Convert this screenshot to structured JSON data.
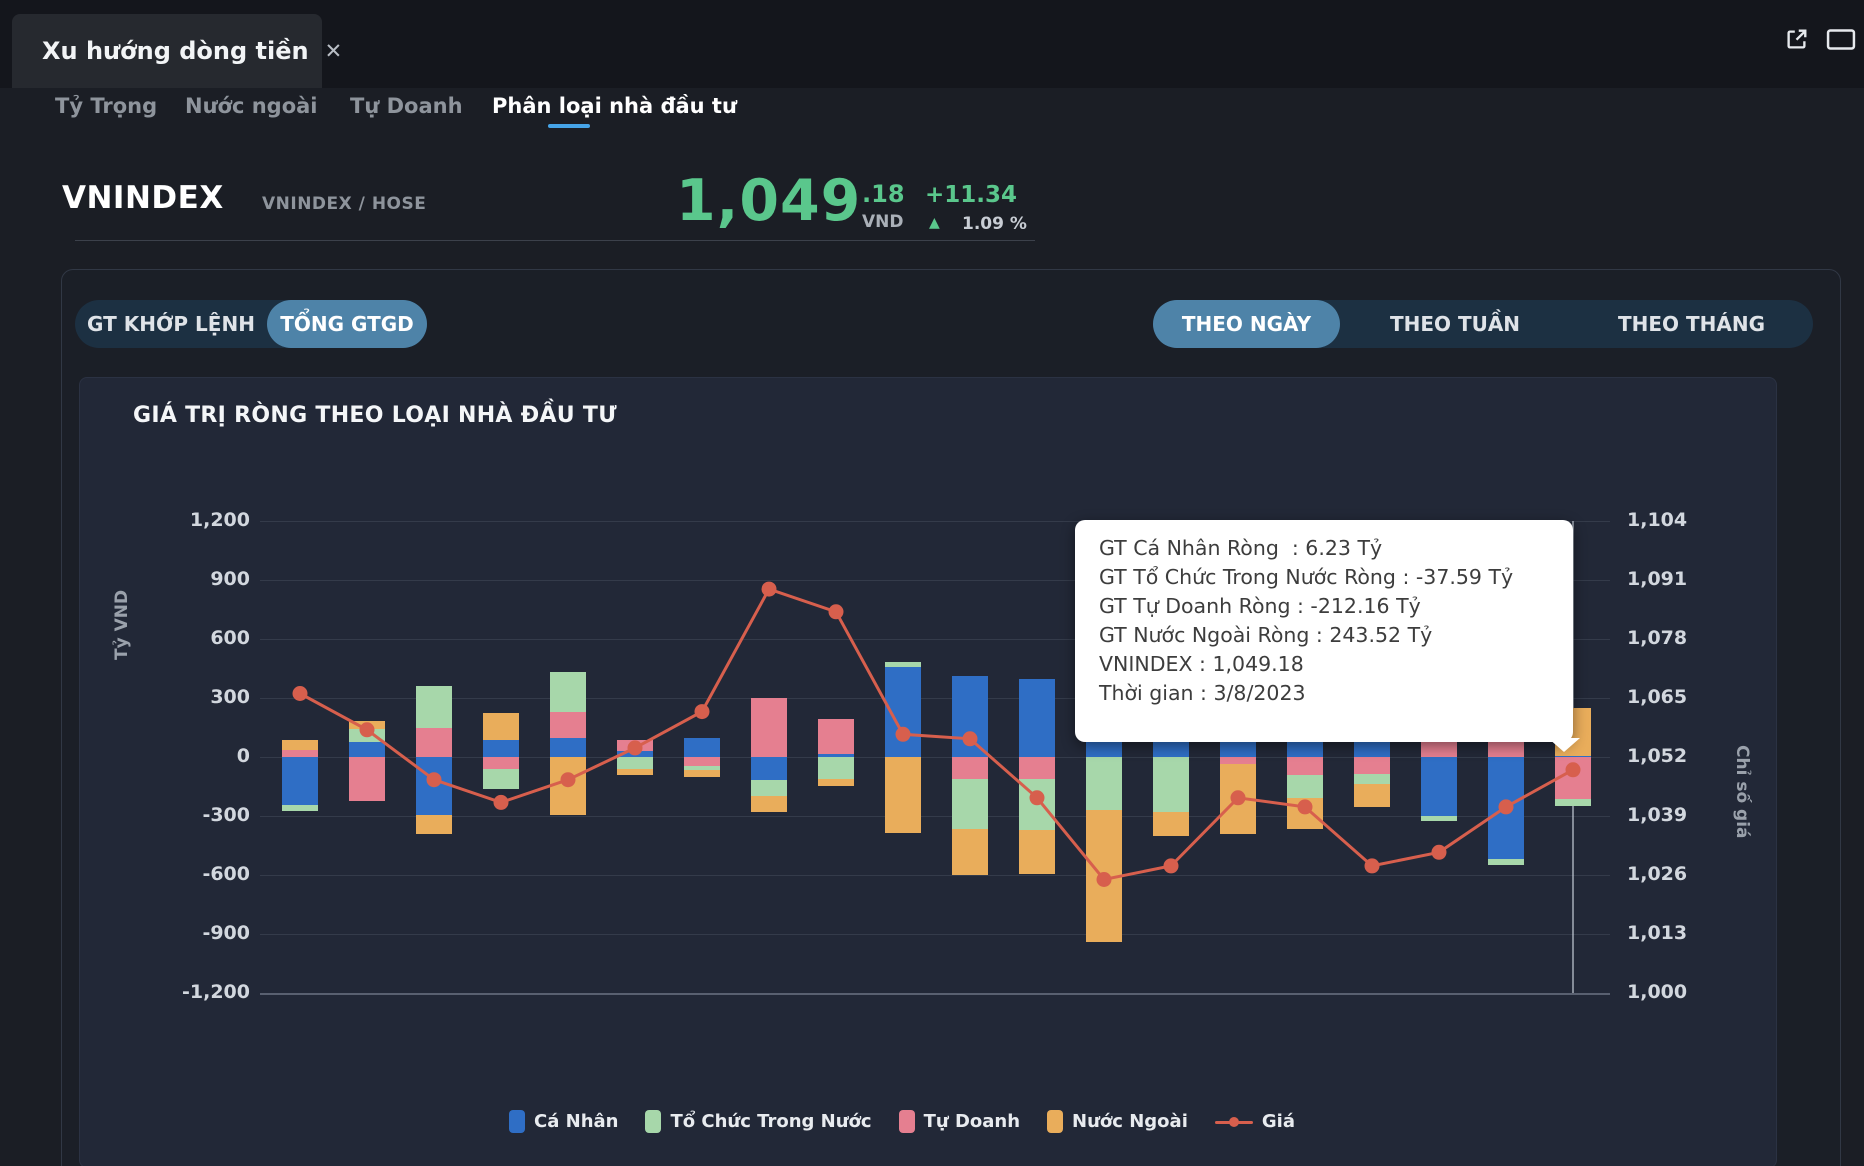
{
  "window": {
    "tab_title": "Xu hướng dòng tiền",
    "close_icon": "✕"
  },
  "icons": {
    "top_right": [
      "external-link-icon",
      "maximize-icon"
    ]
  },
  "nav": {
    "tabs": [
      {
        "label": "Tỷ Trọng",
        "active": false
      },
      {
        "label": "Nước ngoài",
        "active": false
      },
      {
        "label": "Tự Doanh",
        "active": false
      },
      {
        "label": "Phân loại nhà đầu tư",
        "active": true
      }
    ]
  },
  "ticker": {
    "symbol": "VNINDEX",
    "exchange": "VNINDEX / HOSE",
    "price_int": "1,049",
    "price_dec": ".18",
    "currency": "VND",
    "change": "+11.34",
    "up_arrow": "▲",
    "change_pct": "1.09 %",
    "up_color": "#5ac78c"
  },
  "controls": {
    "value_type": [
      {
        "label": "GT KHỚP LỆNH",
        "active": false
      },
      {
        "label": "TỔNG GTGD",
        "active": true
      }
    ],
    "period": [
      {
        "label": "THEO NGÀY",
        "active": true
      },
      {
        "label": "THEO TUẦN",
        "active": false
      },
      {
        "label": "THEO THÁNG",
        "active": false
      }
    ],
    "active_pill_color": "#4e83a8"
  },
  "tooltip": {
    "lines": [
      "GT Cá Nhân Ròng  : 6.23 Tỷ",
      "GT Tổ Chức Trong Nước Ròng : -37.59 Tỷ",
      "GT Tự Doanh Ròng : -212.16 Tỷ",
      "GT Nước Ngoài Ròng : 243.52 Tỷ",
      "VNINDEX : 1,049.18",
      "Thời gian : 3/8/2023"
    ]
  },
  "chart_data": {
    "type": "bar",
    "stacked": true,
    "title": "GIÁ TRỊ RÒNG THEO LOẠI NHÀ ĐẦU TƯ",
    "ylabel_left": "Tỷ VND",
    "ylabel_right": "Chỉ số giá",
    "ylim_left": [
      -1200,
      1200
    ],
    "ytick_step_left": 300,
    "ylim_right": [
      1000,
      1104
    ],
    "ytick_step_right": 13,
    "grid": true,
    "legend_position": "bottom",
    "categories": [
      "",
      "",
      "",
      "",
      "",
      "",
      "",
      "",
      "",
      "",
      "",
      "",
      "",
      "",
      "",
      "",
      "",
      "",
      "",
      "3/8/2023"
    ],
    "series": [
      {
        "name": "Cá Nhân",
        "color": "#2f6ec5",
        "values": [
          -245,
          75,
          -295,
          85,
          95,
          30,
          95,
          -115,
          15,
          460,
          410,
          395,
          105,
          95,
          150,
          140,
          130,
          -300,
          -520,
          6.23
        ]
      },
      {
        "name": "Tổ Chức Trong Nước",
        "color": "#a7d7aa",
        "values": [
          -30,
          65,
          215,
          -105,
          200,
          -60,
          -20,
          -85,
          -110,
          25,
          -255,
          -260,
          -270,
          -280,
          0,
          -120,
          -50,
          -25,
          -30,
          -37.59
        ]
      },
      {
        "name": "Tự Doanh",
        "color": "#e57f90",
        "values": [
          35,
          -225,
          145,
          -60,
          135,
          55,
          -45,
          300,
          180,
          0,
          -110,
          -110,
          0,
          35,
          -35,
          -90,
          -85,
          85,
          90,
          -212.16
        ]
      },
      {
        "name": "Nước Ngoài",
        "color": "#e9ad5b",
        "values": [
          50,
          45,
          -95,
          140,
          -295,
          -30,
          -35,
          -80,
          -40,
          -385,
          -235,
          -225,
          -670,
          -120,
          -355,
          -155,
          -120,
          0,
          0,
          243.52
        ]
      }
    ],
    "stack_order": [
      0,
      2,
      1,
      3
    ],
    "line_series": {
      "name": "Giá",
      "color": "#d75f4d",
      "axis": "right",
      "values": [
        1066,
        1058,
        1047,
        1042,
        1047,
        1054,
        1062,
        1089,
        1084,
        1057,
        1056,
        1043,
        1025,
        1028,
        1043,
        1041,
        1028,
        1031,
        1041,
        1049.18
      ]
    },
    "hover_index": 19
  }
}
